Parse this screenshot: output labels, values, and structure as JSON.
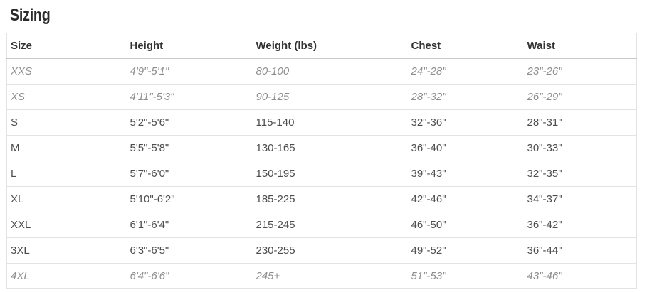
{
  "page": {
    "title": "Sizing"
  },
  "colors": {
    "title_text": "#2b2b2b",
    "header_text": "#333333",
    "cell_text": "#4d4d4d",
    "muted_cell_text": "#8e8e8e",
    "header_border": "#c8c8c8",
    "row_border": "#e3e3e3"
  },
  "table": {
    "columns": {
      "size": "Size",
      "height": "Height",
      "weight": "Weight (lbs)",
      "chest": "Chest",
      "waist": "Waist"
    },
    "rows": [
      {
        "size": "XXS",
        "height": "4'9\"-5'1\"",
        "weight": "80-100",
        "chest": "24\"-28\"",
        "waist": "23\"-26\"",
        "style": "muted"
      },
      {
        "size": "XS",
        "height": "4'11\"-5'3\"",
        "weight": "90-125",
        "chest": "28\"-32\"",
        "waist": "26\"-29\"",
        "style": "muted"
      },
      {
        "size": "S",
        "height": "5'2\"-5'6\"",
        "weight": "115-140",
        "chest": "32\"-36\"",
        "waist": "28\"-31\"",
        "style": "normal"
      },
      {
        "size": "M",
        "height": "5'5\"-5'8\"",
        "weight": "130-165",
        "chest": "36\"-40\"",
        "waist": "30\"-33\"",
        "style": "normal"
      },
      {
        "size": "L",
        "height": "5'7\"-6'0\"",
        "weight": "150-195",
        "chest": "39\"-43\"",
        "waist": "32\"-35\"",
        "style": "normal"
      },
      {
        "size": "XL",
        "height": "5'10\"-6'2\"",
        "weight": "185-225",
        "chest": "42\"-46\"",
        "waist": "34\"-37\"",
        "style": "normal"
      },
      {
        "size": "XXL",
        "height": "6'1\"-6'4\"",
        "weight": "215-245",
        "chest": "46\"-50\"",
        "waist": "36\"-42\"",
        "style": "normal"
      },
      {
        "size": "3XL",
        "height": "6'3\"-6'5\"",
        "weight": "230-255",
        "chest": "49\"-52\"",
        "waist": "36\"-44\"",
        "style": "normal"
      },
      {
        "size": "4XL",
        "height": "6'4\"-6'6\"",
        "weight": "245+",
        "chest": "51\"-53\"",
        "waist": "43\"-46\"",
        "style": "muted"
      }
    ]
  }
}
